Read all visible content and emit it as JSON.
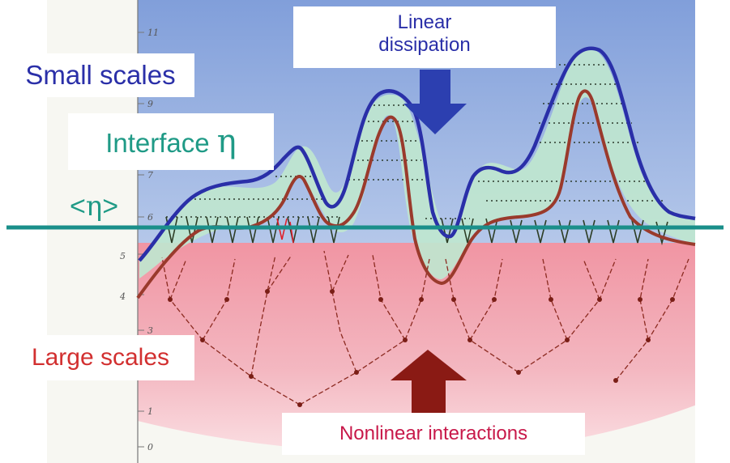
{
  "labels": {
    "small_scales": "Small scales",
    "interface_prefix": "Interface ",
    "interface_symbol": "η",
    "mean_open": "<",
    "mean_symbol": "η",
    "mean_close": ">",
    "linear_dissipation_line1": "Linear",
    "linear_dissipation_line2": "dissipation",
    "large_scales": "Large scales",
    "nonlinear_interactions": "Nonlinear interactions"
  },
  "ruler_ticks": [
    "11",
    "9",
    "7",
    "6",
    "5",
    "4",
    "3",
    "1",
    "0"
  ],
  "colors": {
    "small_scales_blue": "#2a2fa8",
    "interface_green": "#1f9a86",
    "large_scales_red": "#d23030",
    "nonlinear_crimson": "#c8194a",
    "mean_line_teal": "#1a8f8a",
    "arrow_down_blue": "#2c3fb0",
    "arrow_up_brown": "#8a1a14"
  }
}
